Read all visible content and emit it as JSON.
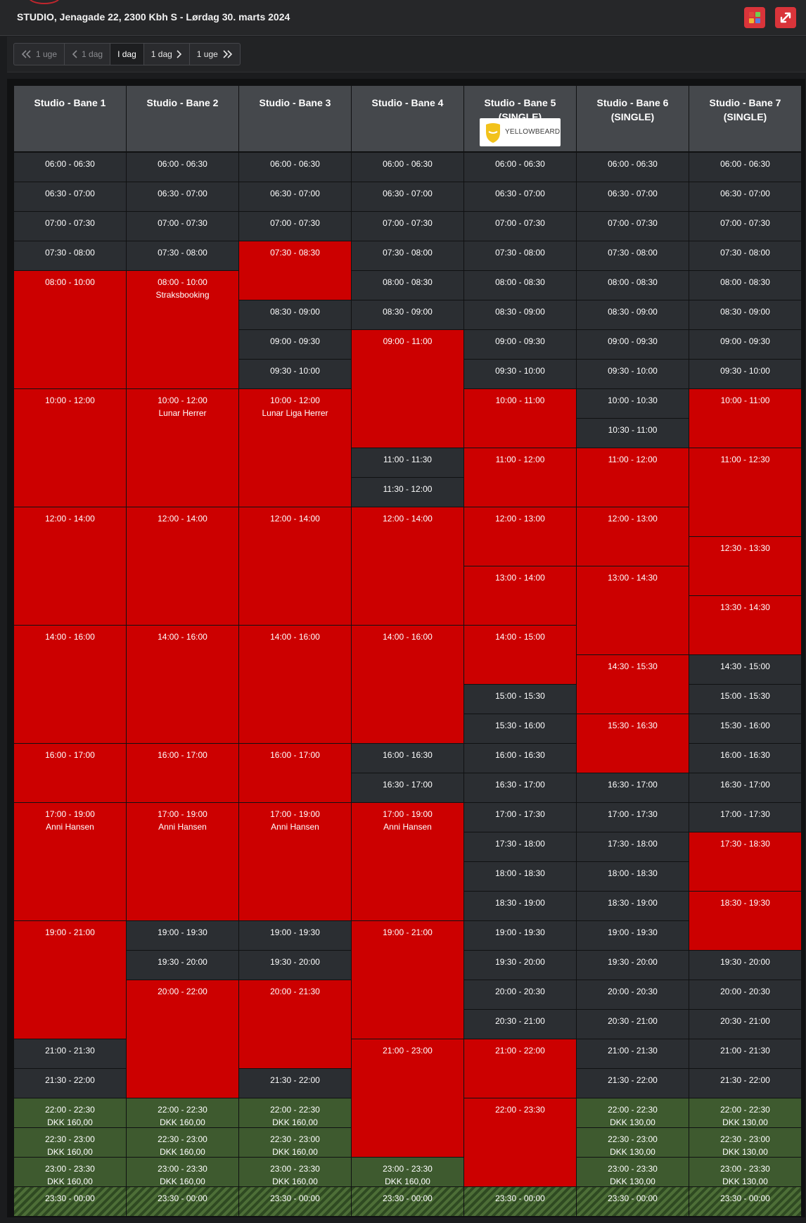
{
  "header": {
    "title": "STUDIO, Jenagade 22, 2300 Kbh S - Lørdag 30. marts 2024"
  },
  "colors": {
    "booked": "#cc0000",
    "free": "#2b2e32",
    "paid": "#3e5a2f",
    "header": "#45484c",
    "accent": "#d9343a"
  },
  "toolbar": {
    "color_icon": "color-grid-icon",
    "expand_icon": "expand-arrows-icon"
  },
  "nav": {
    "prev_week": "1 uge",
    "prev_day": "1 dag",
    "today": "I dag",
    "next_day": "1 dag",
    "next_week": "1 uge"
  },
  "logo": {
    "text": "YELLOWBEARD"
  },
  "lanes": [
    {
      "name": "Studio - Bane 1",
      "slots": [
        {
          "t": "06:00 - 06:30",
          "s": "free"
        },
        {
          "t": "06:30 - 07:00",
          "s": "free"
        },
        {
          "t": "07:00 - 07:30",
          "s": "free"
        },
        {
          "t": "07:30 - 08:00",
          "s": "free"
        },
        {
          "t": "08:00 - 10:00",
          "s": "booked"
        },
        {
          "t": "10:00 - 12:00",
          "s": "booked"
        },
        {
          "t": "12:00 - 14:00",
          "s": "booked"
        },
        {
          "t": "14:00 - 16:00",
          "s": "booked"
        },
        {
          "t": "16:00 - 17:00",
          "s": "booked"
        },
        {
          "t": "17:00 - 19:00",
          "s": "booked",
          "l": "Anni Hansen"
        },
        {
          "t": "19:00 - 21:00",
          "s": "booked"
        },
        {
          "t": "21:00 - 21:30",
          "s": "free"
        },
        {
          "t": "21:30 - 22:00",
          "s": "free"
        },
        {
          "t": "22:00 - 22:30",
          "s": "green",
          "l": "DKK 160,00"
        },
        {
          "t": "22:30 - 23:00",
          "s": "green",
          "l": "DKK 160,00"
        },
        {
          "t": "23:00 - 23:30",
          "s": "green",
          "l": "DKK 160,00"
        },
        {
          "t": "23:30 - 00:00",
          "s": "hatch"
        }
      ]
    },
    {
      "name": "Studio - Bane 2",
      "slots": [
        {
          "t": "06:00 - 06:30",
          "s": "free"
        },
        {
          "t": "06:30 - 07:00",
          "s": "free"
        },
        {
          "t": "07:00 - 07:30",
          "s": "free"
        },
        {
          "t": "07:30 - 08:00",
          "s": "free"
        },
        {
          "t": "08:00 - 10:00",
          "s": "booked",
          "l": "Straksbooking"
        },
        {
          "t": "10:00 - 12:00",
          "s": "booked",
          "l": "Lunar Herrer"
        },
        {
          "t": "12:00 - 14:00",
          "s": "booked"
        },
        {
          "t": "14:00 - 16:00",
          "s": "booked"
        },
        {
          "t": "16:00 - 17:00",
          "s": "booked"
        },
        {
          "t": "17:00 - 19:00",
          "s": "booked",
          "l": "Anni Hansen"
        },
        {
          "t": "19:00 - 19:30",
          "s": "free"
        },
        {
          "t": "19:30 - 20:00",
          "s": "free"
        },
        {
          "t": "20:00 - 22:00",
          "s": "booked"
        },
        {
          "t": "22:00 - 22:30",
          "s": "green",
          "l": "DKK 160,00"
        },
        {
          "t": "22:30 - 23:00",
          "s": "green",
          "l": "DKK 160,00"
        },
        {
          "t": "23:00 - 23:30",
          "s": "green",
          "l": "DKK 160,00"
        },
        {
          "t": "23:30 - 00:00",
          "s": "hatch"
        }
      ]
    },
    {
      "name": "Studio - Bane 3",
      "slots": [
        {
          "t": "06:00 - 06:30",
          "s": "free"
        },
        {
          "t": "06:30 - 07:00",
          "s": "free"
        },
        {
          "t": "07:00 - 07:30",
          "s": "free"
        },
        {
          "t": "07:30 - 08:30",
          "s": "booked"
        },
        {
          "t": "08:30 - 09:00",
          "s": "free"
        },
        {
          "t": "09:00 - 09:30",
          "s": "free"
        },
        {
          "t": "09:30 - 10:00",
          "s": "free"
        },
        {
          "t": "10:00 - 12:00",
          "s": "booked",
          "l": "Lunar Liga Herrer"
        },
        {
          "t": "12:00 - 14:00",
          "s": "booked"
        },
        {
          "t": "14:00 - 16:00",
          "s": "booked"
        },
        {
          "t": "16:00 - 17:00",
          "s": "booked"
        },
        {
          "t": "17:00 - 19:00",
          "s": "booked",
          "l": "Anni Hansen"
        },
        {
          "t": "19:00 - 19:30",
          "s": "free"
        },
        {
          "t": "19:30 - 20:00",
          "s": "free"
        },
        {
          "t": "20:00 - 21:30",
          "s": "booked"
        },
        {
          "t": "21:30 - 22:00",
          "s": "free"
        },
        {
          "t": "22:00 - 22:30",
          "s": "green",
          "l": "DKK 160,00"
        },
        {
          "t": "22:30 - 23:00",
          "s": "green",
          "l": "DKK 160,00"
        },
        {
          "t": "23:00 - 23:30",
          "s": "green",
          "l": "DKK 160,00"
        },
        {
          "t": "23:30 - 00:00",
          "s": "hatch"
        }
      ]
    },
    {
      "name": "Studio - Bane 4",
      "slots": [
        {
          "t": "06:00 - 06:30",
          "s": "free"
        },
        {
          "t": "06:30 - 07:00",
          "s": "free"
        },
        {
          "t": "07:00 - 07:30",
          "s": "free"
        },
        {
          "t": "07:30 - 08:00",
          "s": "free"
        },
        {
          "t": "08:00 - 08:30",
          "s": "free"
        },
        {
          "t": "08:30 - 09:00",
          "s": "free"
        },
        {
          "t": "09:00 - 11:00",
          "s": "booked"
        },
        {
          "t": "11:00 - 11:30",
          "s": "free"
        },
        {
          "t": "11:30 - 12:00",
          "s": "free"
        },
        {
          "t": "12:00 - 14:00",
          "s": "booked"
        },
        {
          "t": "14:00 - 16:00",
          "s": "booked"
        },
        {
          "t": "16:00 - 16:30",
          "s": "free"
        },
        {
          "t": "16:30 - 17:00",
          "s": "free"
        },
        {
          "t": "17:00 - 19:00",
          "s": "booked",
          "l": "Anni Hansen"
        },
        {
          "t": "19:00 - 21:00",
          "s": "booked"
        },
        {
          "t": "21:00 - 23:00",
          "s": "booked"
        },
        {
          "t": "23:00 - 23:30",
          "s": "green",
          "l": "DKK 160,00"
        },
        {
          "t": "23:30 - 00:00",
          "s": "hatch"
        }
      ]
    },
    {
      "name": "Studio - Bane 5\n(SINGLE)",
      "slots": [
        {
          "t": "06:00 - 06:30",
          "s": "free"
        },
        {
          "t": "06:30 - 07:00",
          "s": "free"
        },
        {
          "t": "07:00 - 07:30",
          "s": "free"
        },
        {
          "t": "07:30 - 08:00",
          "s": "free"
        },
        {
          "t": "08:00 - 08:30",
          "s": "free"
        },
        {
          "t": "08:30 - 09:00",
          "s": "free"
        },
        {
          "t": "09:00 - 09:30",
          "s": "free"
        },
        {
          "t": "09:30 - 10:00",
          "s": "free"
        },
        {
          "t": "10:00 - 11:00",
          "s": "booked"
        },
        {
          "t": "11:00 - 12:00",
          "s": "booked"
        },
        {
          "t": "12:00 - 13:00",
          "s": "booked"
        },
        {
          "t": "13:00 - 14:00",
          "s": "booked"
        },
        {
          "t": "14:00 - 15:00",
          "s": "booked"
        },
        {
          "t": "15:00 - 15:30",
          "s": "free"
        },
        {
          "t": "15:30 - 16:00",
          "s": "free"
        },
        {
          "t": "16:00 - 16:30",
          "s": "free"
        },
        {
          "t": "16:30 - 17:00",
          "s": "free"
        },
        {
          "t": "17:00 - 17:30",
          "s": "free"
        },
        {
          "t": "17:30 - 18:00",
          "s": "free"
        },
        {
          "t": "18:00 - 18:30",
          "s": "free"
        },
        {
          "t": "18:30 - 19:00",
          "s": "free"
        },
        {
          "t": "19:00 - 19:30",
          "s": "free"
        },
        {
          "t": "19:30 - 20:00",
          "s": "free"
        },
        {
          "t": "20:00 - 20:30",
          "s": "free"
        },
        {
          "t": "20:30 - 21:00",
          "s": "free"
        },
        {
          "t": "21:00 - 22:00",
          "s": "booked"
        },
        {
          "t": "22:00 - 23:30",
          "s": "booked"
        },
        {
          "t": "23:30 - 00:00",
          "s": "hatch"
        }
      ]
    },
    {
      "name": "Studio - Bane 6\n(SINGLE)",
      "slots": [
        {
          "t": "06:00 - 06:30",
          "s": "free"
        },
        {
          "t": "06:30 - 07:00",
          "s": "free"
        },
        {
          "t": "07:00 - 07:30",
          "s": "free"
        },
        {
          "t": "07:30 - 08:00",
          "s": "free"
        },
        {
          "t": "08:00 - 08:30",
          "s": "free"
        },
        {
          "t": "08:30 - 09:00",
          "s": "free"
        },
        {
          "t": "09:00 - 09:30",
          "s": "free"
        },
        {
          "t": "09:30 - 10:00",
          "s": "free"
        },
        {
          "t": "10:00 - 10:30",
          "s": "free"
        },
        {
          "t": "10:30 - 11:00",
          "s": "free"
        },
        {
          "t": "11:00 - 12:00",
          "s": "booked"
        },
        {
          "t": "12:00 - 13:00",
          "s": "booked"
        },
        {
          "t": "13:00 - 14:30",
          "s": "booked"
        },
        {
          "t": "14:30 - 15:30",
          "s": "booked"
        },
        {
          "t": "15:30 - 16:30",
          "s": "booked"
        },
        {
          "t": "16:30 - 17:00",
          "s": "free"
        },
        {
          "t": "17:00 - 17:30",
          "s": "free"
        },
        {
          "t": "17:30 - 18:00",
          "s": "free"
        },
        {
          "t": "18:00 - 18:30",
          "s": "free"
        },
        {
          "t": "18:30 - 19:00",
          "s": "free"
        },
        {
          "t": "19:00 - 19:30",
          "s": "free"
        },
        {
          "t": "19:30 - 20:00",
          "s": "free"
        },
        {
          "t": "20:00 - 20:30",
          "s": "free"
        },
        {
          "t": "20:30 - 21:00",
          "s": "free"
        },
        {
          "t": "21:00 - 21:30",
          "s": "free"
        },
        {
          "t": "21:30 - 22:00",
          "s": "free"
        },
        {
          "t": "22:00 - 22:30",
          "s": "green",
          "l": "DKK 130,00"
        },
        {
          "t": "22:30 - 23:00",
          "s": "green",
          "l": "DKK 130,00"
        },
        {
          "t": "23:00 - 23:30",
          "s": "green",
          "l": "DKK 130,00"
        },
        {
          "t": "23:30 - 00:00",
          "s": "hatch"
        }
      ]
    },
    {
      "name": "Studio - Bane 7\n(SINGLE)",
      "slots": [
        {
          "t": "06:00 - 06:30",
          "s": "free"
        },
        {
          "t": "06:30 - 07:00",
          "s": "free"
        },
        {
          "t": "07:00 - 07:30",
          "s": "free"
        },
        {
          "t": "07:30 - 08:00",
          "s": "free"
        },
        {
          "t": "08:00 - 08:30",
          "s": "free"
        },
        {
          "t": "08:30 - 09:00",
          "s": "free"
        },
        {
          "t": "09:00 - 09:30",
          "s": "free"
        },
        {
          "t": "09:30 - 10:00",
          "s": "free"
        },
        {
          "t": "10:00 - 11:00",
          "s": "booked"
        },
        {
          "t": "11:00 - 12:30",
          "s": "booked"
        },
        {
          "t": "12:30 - 13:30",
          "s": "booked"
        },
        {
          "t": "13:30 - 14:30",
          "s": "booked"
        },
        {
          "t": "14:30 - 15:00",
          "s": "free"
        },
        {
          "t": "15:00 - 15:30",
          "s": "free"
        },
        {
          "t": "15:30 - 16:00",
          "s": "free"
        },
        {
          "t": "16:00 - 16:30",
          "s": "free"
        },
        {
          "t": "16:30 - 17:00",
          "s": "free"
        },
        {
          "t": "17:00 - 17:30",
          "s": "free"
        },
        {
          "t": "17:30 - 18:30",
          "s": "booked"
        },
        {
          "t": "18:30 - 19:30",
          "s": "booked"
        },
        {
          "t": "19:30 - 20:00",
          "s": "free"
        },
        {
          "t": "20:00 - 20:30",
          "s": "free"
        },
        {
          "t": "20:30 - 21:00",
          "s": "free"
        },
        {
          "t": "21:00 - 21:30",
          "s": "free"
        },
        {
          "t": "21:30 - 22:00",
          "s": "free"
        },
        {
          "t": "22:00 - 22:30",
          "s": "green",
          "l": "DKK 130,00"
        },
        {
          "t": "22:30 - 23:00",
          "s": "green",
          "l": "DKK 130,00"
        },
        {
          "t": "23:00 - 23:30",
          "s": "green",
          "l": "DKK 130,00"
        },
        {
          "t": "23:30 - 00:00",
          "s": "hatch"
        }
      ]
    }
  ]
}
